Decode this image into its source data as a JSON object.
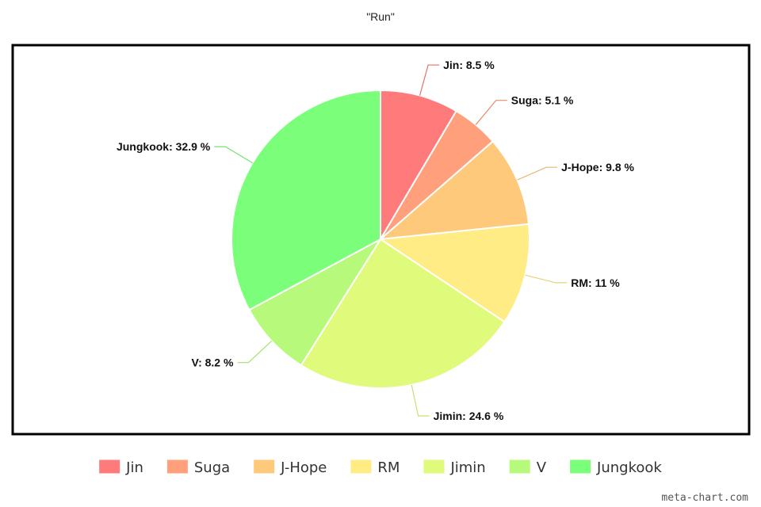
{
  "chart_data": {
    "type": "pie",
    "title": "\"Run\"",
    "legend_position": "bottom",
    "label_unit": "%",
    "slices": [
      {
        "label": "Jin",
        "value": 8.5,
        "color": "#ff7b7b"
      },
      {
        "label": "Suga",
        "value": 5.1,
        "color": "#ff9f7b"
      },
      {
        "label": "J-Hope",
        "value": 9.8,
        "color": "#ffc97b"
      },
      {
        "label": "RM",
        "value": 11,
        "color": "#ffec85"
      },
      {
        "label": "Jimin",
        "value": 24.6,
        "color": "#e0fa7b"
      },
      {
        "label": "V",
        "value": 8.2,
        "color": "#b7fa7b"
      },
      {
        "label": "Jungkook",
        "value": 32.9,
        "color": "#7bff7b"
      }
    ]
  },
  "watermark": "meta-chart.com"
}
